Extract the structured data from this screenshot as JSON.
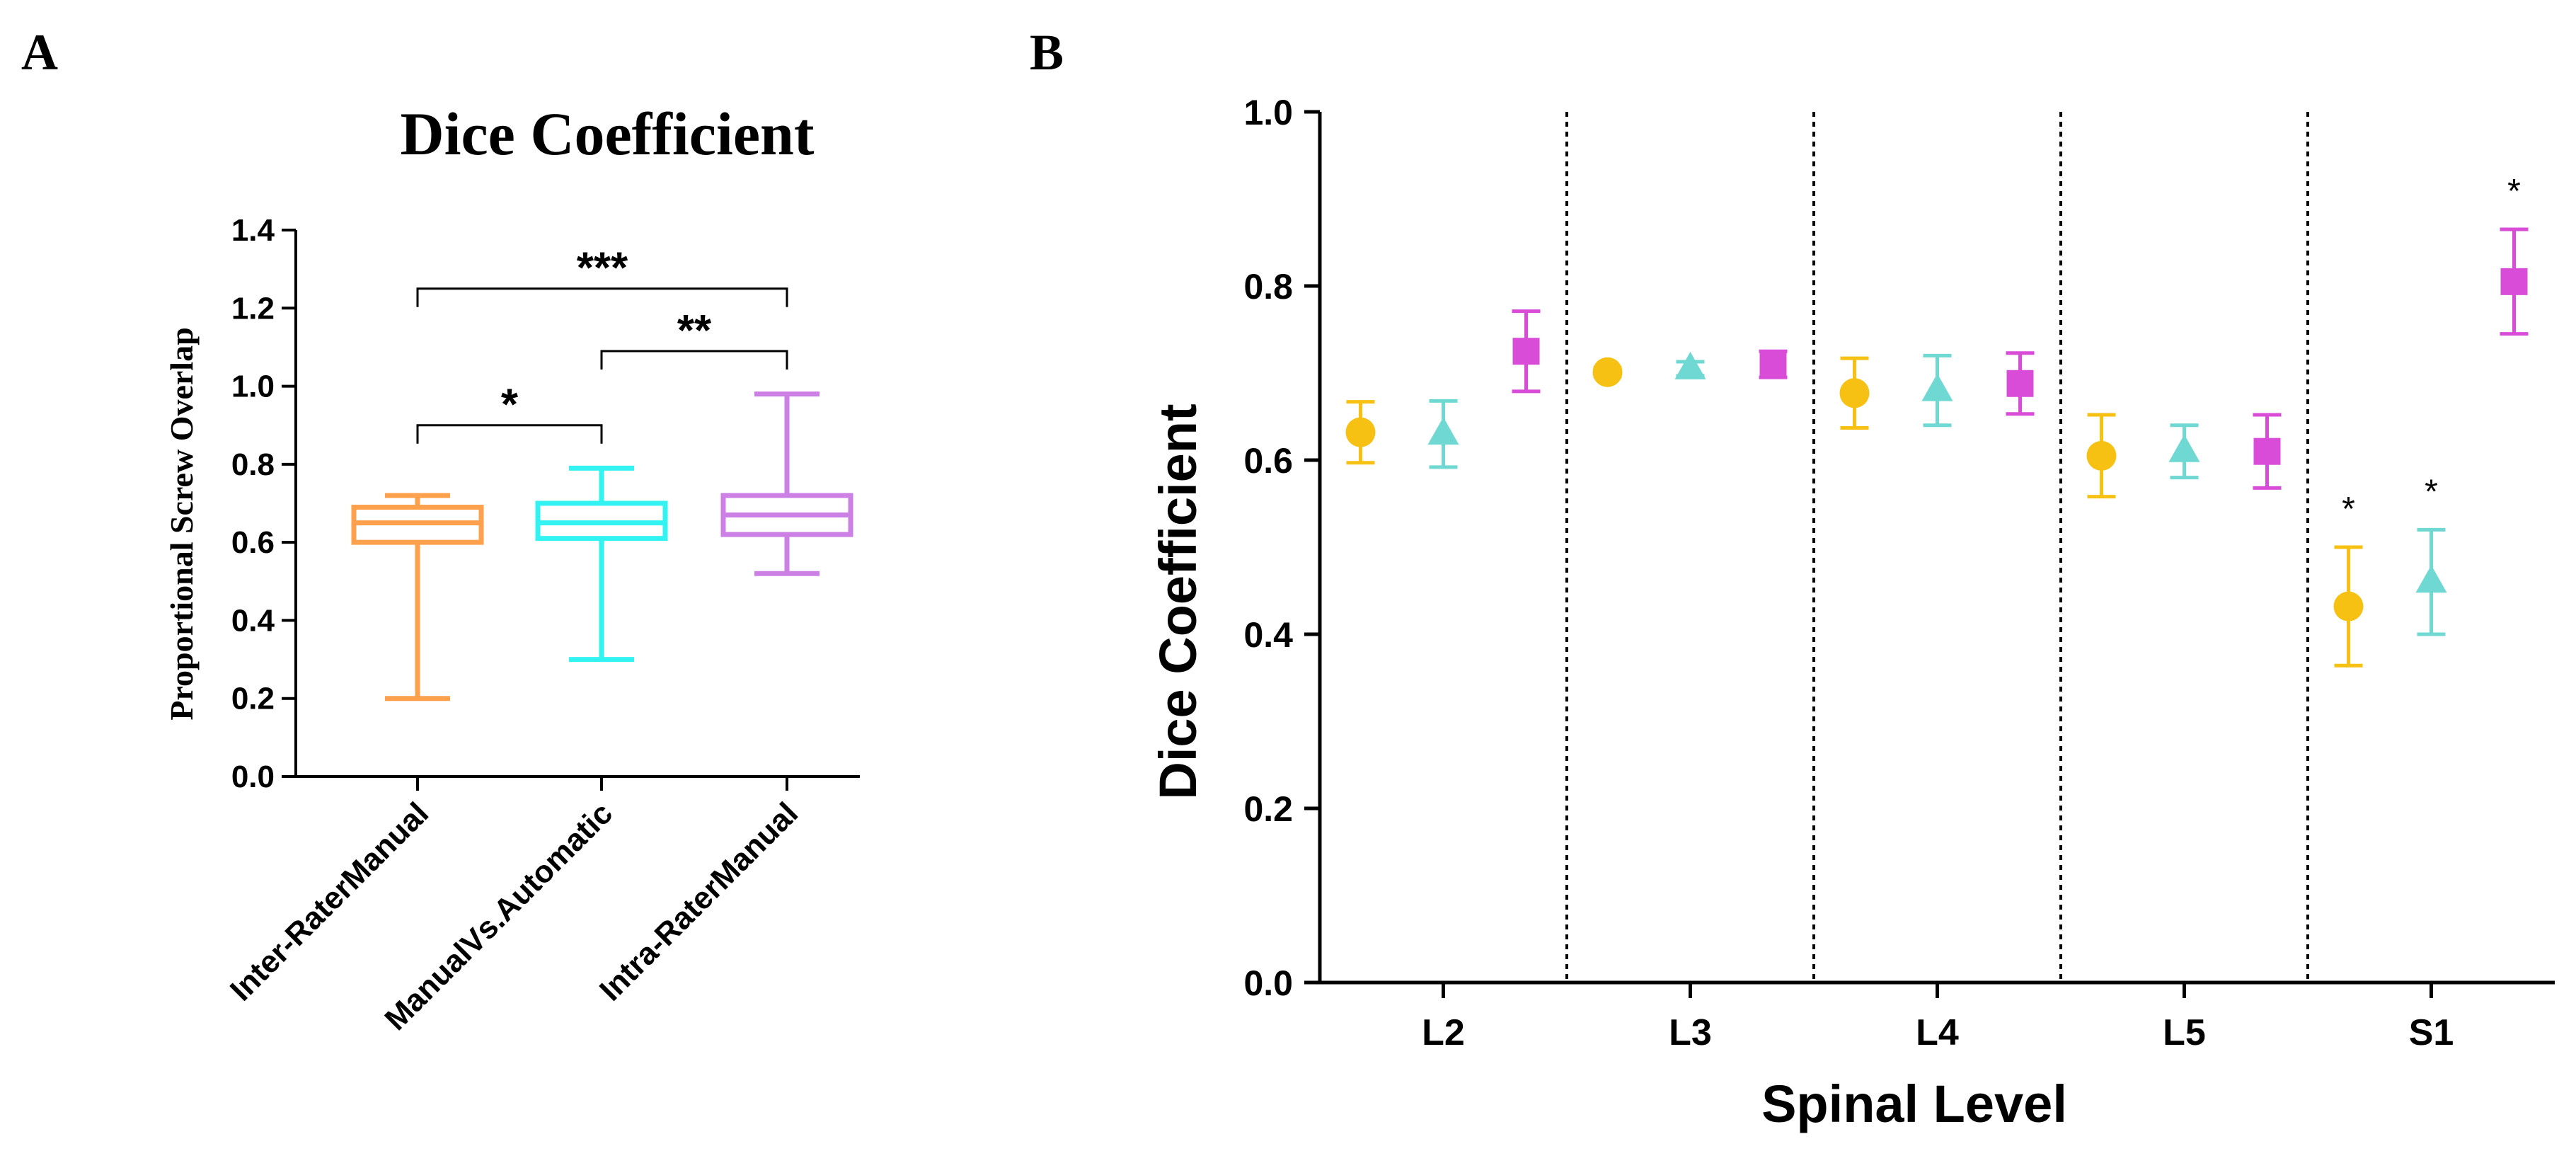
{
  "chart_data": [
    {
      "panel_label": "A",
      "type": "box",
      "title": "Dice Coefficient",
      "ylabel": "Proportional Screw Overlap",
      "ylim": [
        0.0,
        1.4
      ],
      "yticks": [
        "0.0",
        "0.2",
        "0.4",
        "0.6",
        "0.8",
        "1.0",
        "1.2",
        "1.4"
      ],
      "yticks_values": [
        0.0,
        0.2,
        0.4,
        0.6,
        0.8,
        1.0,
        1.2,
        1.4
      ],
      "categories": [
        "Inter-RaterManual",
        "ManualVs.Automatic",
        "Intra-RaterManual"
      ],
      "boxes": [
        {
          "min": 0.2,
          "q1": 0.6,
          "median": 0.65,
          "q3": 0.69,
          "max": 0.72,
          "color": "#FFA04D"
        },
        {
          "min": 0.3,
          "q1": 0.61,
          "median": 0.65,
          "q3": 0.7,
          "max": 0.79,
          "color": "#33F2F2"
        },
        {
          "min": 0.52,
          "q1": 0.62,
          "median": 0.67,
          "q3": 0.72,
          "max": 0.98,
          "color": "#CC80E6"
        }
      ],
      "annotations": [
        {
          "from": 0,
          "to": 1,
          "y": 0.9,
          "label": "*"
        },
        {
          "from": 1,
          "to": 2,
          "y": 1.09,
          "label": "**"
        },
        {
          "from": 0,
          "to": 2,
          "y": 1.25,
          "label": "***"
        }
      ]
    },
    {
      "panel_label": "B",
      "type": "scatter",
      "xlabel": "Spinal Level",
      "ylabel": "Dice Coefficient",
      "ylim": [
        0.0,
        1.0
      ],
      "yticks": [
        "0.0",
        "0.2",
        "0.4",
        "0.6",
        "0.8",
        "1.0"
      ],
      "yticks_values": [
        0.0,
        0.2,
        0.4,
        0.6,
        0.8,
        1.0
      ],
      "categories": [
        "L2",
        "L3",
        "L4",
        "L5",
        "S1"
      ],
      "grid": false,
      "vertical_separators": true,
      "series": [
        {
          "marker": "circle",
          "color": "#F7C113",
          "values": [
            0.632,
            0.701,
            0.677,
            0.605,
            0.432
          ],
          "err": [
            0.035,
            0.005,
            0.04,
            0.047,
            0.068
          ]
        },
        {
          "marker": "triangle",
          "color": "#6FD8D3",
          "values": [
            0.63,
            0.705,
            0.68,
            0.61,
            0.46
          ],
          "err": [
            0.038,
            0.008,
            0.04,
            0.03,
            0.06
          ]
        },
        {
          "marker": "square",
          "color": "#D84CD8",
          "values": [
            0.725,
            0.71,
            0.688,
            0.61,
            0.805
          ],
          "err": [
            0.046,
            0.015,
            0.035,
            0.042,
            0.06
          ]
        }
      ],
      "significance": [
        {
          "category": 4,
          "series": 0,
          "label": "*"
        },
        {
          "category": 4,
          "series": 1,
          "label": "*"
        },
        {
          "category": 4,
          "series": 2,
          "label": "*"
        }
      ]
    }
  ]
}
